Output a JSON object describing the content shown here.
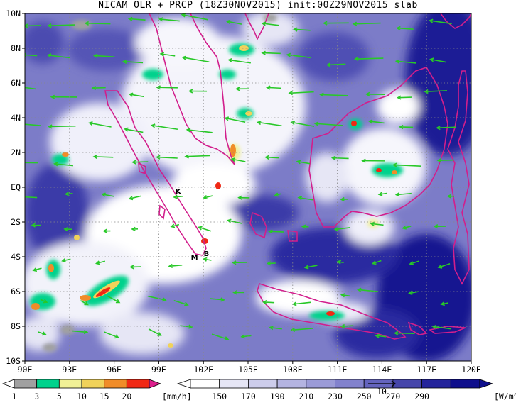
{
  "title": "NICAM OLR + PRCP (18Z30NOV2015) init:00Z29NOV2015 slab",
  "extent": {
    "lon_min": 90,
    "lon_max": 120,
    "lat_min": -10,
    "lat_max": 10
  },
  "axes": {
    "x_ticks": [
      {
        "lon": 90,
        "label": "90E"
      },
      {
        "lon": 93,
        "label": "93E"
      },
      {
        "lon": 96,
        "label": "96E"
      },
      {
        "lon": 99,
        "label": "99E"
      },
      {
        "lon": 102,
        "label": "102E"
      },
      {
        "lon": 105,
        "label": "105E"
      },
      {
        "lon": 108,
        "label": "108E"
      },
      {
        "lon": 111,
        "label": "111E"
      },
      {
        "lon": 114,
        "label": "114E"
      },
      {
        "lon": 117,
        "label": "117E"
      },
      {
        "lon": 120,
        "label": "120E"
      }
    ],
    "y_ticks": [
      {
        "lat": 10,
        "label": "10N"
      },
      {
        "lat": 8,
        "label": "8N"
      },
      {
        "lat": 6,
        "label": "6N"
      },
      {
        "lat": 4,
        "label": "4N"
      },
      {
        "lat": 2,
        "label": "2N"
      },
      {
        "lat": 0,
        "label": "EQ"
      },
      {
        "lat": -2,
        "label": "2S"
      },
      {
        "lat": -4,
        "label": "4S"
      },
      {
        "lat": -6,
        "label": "6S"
      },
      {
        "lat": -8,
        "label": "8S"
      },
      {
        "lat": -10,
        "label": "10S"
      }
    ]
  },
  "places": [
    {
      "label": "K",
      "lon": 100.3,
      "lat": -0.2
    },
    {
      "label": "B",
      "lon": 102.2,
      "lat": -3.8
    },
    {
      "label": "M",
      "lon": 101.4,
      "lat": -4.0
    }
  ],
  "precip_legend": {
    "unit": "[mm/h]",
    "values": [
      "1",
      "3",
      "5",
      "10",
      "15",
      "20"
    ],
    "colors": [
      "#a0a0a0",
      "#00d28c",
      "#f0f096",
      "#f0d25a",
      "#f08c28",
      "#f02814",
      "#dc1e8c"
    ]
  },
  "olr_legend": {
    "unit": "[W/m^2]",
    "values": [
      "150",
      "170",
      "190",
      "210",
      "230",
      "250",
      "270",
      "290"
    ],
    "colors": [
      "#ffffff",
      "#e6e6f5",
      "#cdcdeb",
      "#b4b4e1",
      "#9b9bd7",
      "#8282cd",
      "#6464be",
      "#4646aa",
      "#23239b",
      "#0f0f8c"
    ]
  },
  "wind_reference": {
    "label": "10"
  },
  "colors": {
    "coast": "#d21e8c",
    "wind_arrow": "#28c828",
    "background": "#ffffff"
  }
}
